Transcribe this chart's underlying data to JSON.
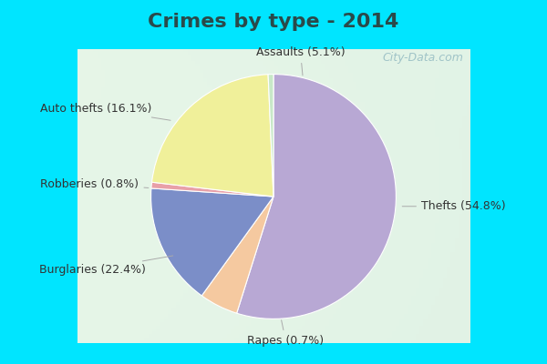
{
  "title": "Crimes by type - 2014",
  "title_fontsize": 16,
  "title_fontweight": "bold",
  "title_color": "#2a4a4a",
  "slices": [
    {
      "label": "Thefts (54.8%)",
      "value": 54.8,
      "color": "#b8a8d4"
    },
    {
      "label": "Assaults (5.1%)",
      "value": 5.1,
      "color": "#f5c9a0"
    },
    {
      "label": "Auto thefts (16.1%)",
      "value": 16.1,
      "color": "#7b8ec8"
    },
    {
      "label": "Robberies (0.8%)",
      "value": 0.8,
      "color": "#e8a0a8"
    },
    {
      "label": "Burglaries (22.4%)",
      "value": 22.4,
      "color": "#f0f09a"
    },
    {
      "label": "Rapes (0.7%)",
      "value": 0.7,
      "color": "#c8e8c8"
    }
  ],
  "outer_bg": "#00e5ff",
  "label_fontsize": 9,
  "label_color": "#333333",
  "figsize": [
    6.0,
    4.0
  ],
  "dpi": 100,
  "watermark": "City-Data.com",
  "watermark_color": "#90b8c0",
  "watermark_alpha": 0.8
}
